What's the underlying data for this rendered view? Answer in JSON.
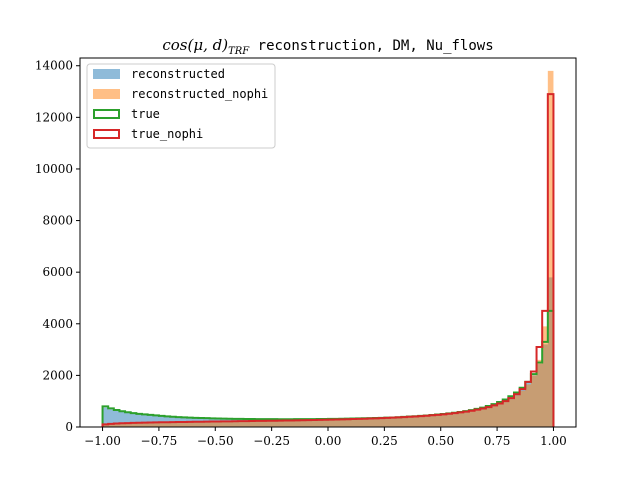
{
  "chart_data": {
    "type": "histogram",
    "title_math": "cos(μ, d)",
    "title_math_sub": "TRF",
    "title_text": " reconstruction, DM, Nu_flows",
    "xlim": [
      -1.1,
      1.1
    ],
    "ylim": [
      0,
      14300
    ],
    "x_ticks": [
      -1.0,
      -0.75,
      -0.5,
      -0.25,
      0.0,
      0.25,
      0.5,
      0.75,
      1.0
    ],
    "x_tick_labels": [
      "−1.00",
      "−0.75",
      "−0.50",
      "−0.25",
      "0.00",
      "0.25",
      "0.50",
      "0.75",
      "1.00"
    ],
    "y_ticks": [
      0,
      2000,
      4000,
      6000,
      8000,
      10000,
      12000,
      14000
    ],
    "y_tick_labels": [
      "0",
      "2000",
      "4000",
      "6000",
      "8000",
      "10000",
      "12000",
      "14000"
    ],
    "bin_range": [
      -1.0,
      1.0
    ],
    "legend_position": "upper left",
    "series": [
      {
        "name": "reconstructed",
        "style": "filled",
        "color": "#1f77b4",
        "values": [
          750,
          680,
          630,
          590,
          560,
          530,
          500,
          480,
          460,
          440,
          420,
          400,
          390,
          380,
          370,
          360,
          350,
          345,
          340,
          335,
          330,
          325,
          320,
          318,
          315,
          312,
          310,
          308,
          306,
          305,
          304,
          303,
          302,
          302,
          303,
          304,
          305,
          306,
          308,
          310,
          312,
          315,
          318,
          322,
          326,
          330,
          335,
          340,
          346,
          352,
          360,
          368,
          378,
          390,
          402,
          415,
          430,
          445,
          462,
          480,
          500,
          522,
          548,
          578,
          612,
          650,
          695,
          748,
          810,
          880,
          960,
          1060,
          1180,
          1320,
          1500,
          1720,
          2000,
          2450,
          3200,
          5800
        ]
      },
      {
        "name": "reconstructed_nophi",
        "style": "filled",
        "color": "#ff7f0e",
        "values": [
          120,
          140,
          150,
          160,
          165,
          170,
          175,
          180,
          185,
          190,
          192,
          195,
          198,
          200,
          202,
          205,
          207,
          210,
          212,
          215,
          218,
          220,
          222,
          225,
          228,
          230,
          233,
          236,
          238,
          240,
          243,
          246,
          250,
          253,
          256,
          260,
          264,
          268,
          272,
          276,
          280,
          285,
          290,
          295,
          300,
          306,
          312,
          318,
          325,
          332,
          340,
          348,
          357,
          367,
          378,
          390,
          403,
          418,
          434,
          452,
          472,
          495,
          520,
          548,
          580,
          616,
          656,
          702,
          754,
          815,
          885,
          970,
          1080,
          1220,
          1400,
          1650,
          2000,
          2600,
          3900,
          13800
        ]
      },
      {
        "name": "true",
        "style": "step",
        "color": "#2ca02c",
        "values": [
          800,
          720,
          660,
          610,
          570,
          540,
          510,
          490,
          470,
          450,
          430,
          410,
          395,
          385,
          375,
          365,
          355,
          348,
          342,
          336,
          330,
          325,
          320,
          316,
          313,
          310,
          308,
          306,
          305,
          304,
          303,
          302,
          302,
          302,
          303,
          304,
          305,
          307,
          309,
          311,
          313,
          316,
          319,
          323,
          327,
          332,
          337,
          342,
          348,
          355,
          362,
          370,
          380,
          392,
          405,
          418,
          432,
          448,
          465,
          483,
          503,
          526,
          552,
          582,
          616,
          655,
          700,
          753,
          815,
          885,
          968,
          1068,
          1190,
          1335,
          1520,
          1750,
          2050,
          2500,
          3300,
          4500
        ]
      },
      {
        "name": "true_nophi",
        "style": "step",
        "color": "#d62728",
        "values": [
          100,
          120,
          135,
          145,
          152,
          158,
          163,
          168,
          173,
          178,
          182,
          186,
          190,
          193,
          196,
          199,
          202,
          205,
          208,
          211,
          214,
          217,
          220,
          223,
          226,
          229,
          232,
          235,
          238,
          241,
          244,
          247,
          250,
          254,
          258,
          262,
          266,
          270,
          275,
          280,
          285,
          290,
          296,
          302,
          308,
          314,
          321,
          328,
          336,
          344,
          353,
          362,
          372,
          383,
          395,
          408,
          422,
          437,
          453,
          471,
          491,
          513,
          537,
          565,
          596,
          632,
          672,
          718,
          772,
          836,
          912,
          1005,
          1120,
          1270,
          1470,
          1750,
          2150,
          3100,
          4500,
          12900
        ]
      }
    ]
  }
}
